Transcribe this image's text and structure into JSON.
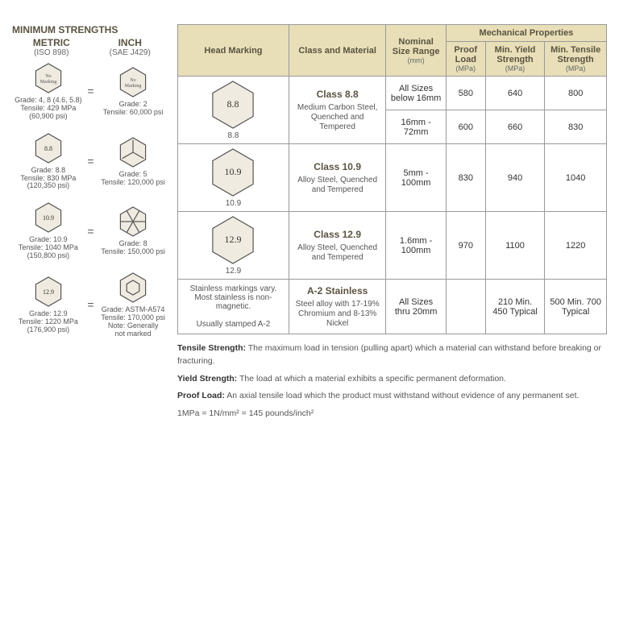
{
  "left": {
    "title": "MINIMUM STRENGTHS",
    "metric_label": "METRIC",
    "metric_sub": "(ISO 898)",
    "inch_label": "INCH",
    "inch_sub": "(SAE J429)",
    "rows": [
      {
        "metric_mark": "No Marking",
        "inch_mark": "No Marking",
        "metric_text": "Grade: 4, 8 (4.6, 5.8)\nTensile: 429 MPa\n(60,900 psi)",
        "inch_text": "Grade: 2\nTensile: 60,000 psi"
      },
      {
        "metric_mark": "8.8",
        "inch_mark": "3tick",
        "metric_text": "Grade: 8.8\nTensile: 830 MPa\n(120,350 psi)",
        "inch_text": "Grade: 5\nTensile: 120,000 psi"
      },
      {
        "metric_mark": "10.9",
        "inch_mark": "6tick",
        "metric_text": "Grade: 10.9\nTensile: 1040 MPa\n(150,800 psi)",
        "inch_text": "Grade: 8\nTensile: 150,000 psi"
      },
      {
        "metric_mark": "12.9",
        "inch_mark": "socket",
        "metric_text": "Grade: 12.9\nTensile: 1220 MPa\n(176,900 psi)",
        "inch_text": "Grade: ASTM-A574\nTensile: 170,000 psi\nNote: Generally\nnot marked"
      }
    ]
  },
  "table": {
    "headers": {
      "head_marking": "Head Marking",
      "class_material": "Class and Material",
      "nominal": "Nominal Size Range",
      "nominal_unit": "(mm)",
      "mech_props": "Mechanical Properties",
      "proof": "Proof Load",
      "proof_unit": "(MPa)",
      "yield": "Min. Yield Strength",
      "yield_unit": "(MPa)",
      "tensile": "Min. Tensile Strength",
      "tensile_unit": "(MPa)"
    },
    "rows": [
      {
        "mark": "8.8",
        "class": "Class 8.8",
        "material": "Medium Carbon Steel, Quenched and Tempered",
        "sizes": [
          "All Sizes below 16mm",
          "16mm - 72mm"
        ],
        "proof": [
          "580",
          "600"
        ],
        "yield": [
          "640",
          "660"
        ],
        "tensile": [
          "800",
          "830"
        ]
      },
      {
        "mark": "10.9",
        "class": "Class 10.9",
        "material": "Alloy Steel, Quenched and Tempered",
        "sizes": [
          "5mm - 100mm"
        ],
        "proof": [
          "830"
        ],
        "yield": [
          "940"
        ],
        "tensile": [
          "1040"
        ]
      },
      {
        "mark": "12.9",
        "class": "Class 12.9",
        "material": "Alloy Steel, Quenched and Tempered",
        "sizes": [
          "1.6mm - 100mm"
        ],
        "proof": [
          "970"
        ],
        "yield": [
          "1100"
        ],
        "tensile": [
          "1220"
        ]
      },
      {
        "mark_text": "Stainless markings vary. Most stainless is non-magnetic.\n\nUsually stamped A-2",
        "class": "A-2 Stainless",
        "material": "Steel alloy with 17-19% Chromium and 8-13% Nickel",
        "sizes": [
          "All Sizes thru 20mm"
        ],
        "proof": [
          ""
        ],
        "yield": [
          "210 Min. 450 Typical"
        ],
        "tensile": [
          "500 Min. 700 Typical"
        ]
      }
    ]
  },
  "defs": {
    "tensile_label": "Tensile Strength:",
    "tensile": "The maximum load in tension (pulling apart) which a material can withstand before breaking or fracturing.",
    "yield_label": "Yield Strength:",
    "yield": "The load at which a material exhibits a specific permanent deformation.",
    "proof_label": "Proof Load:",
    "proof": "An axial tensile load which the product must withstand without evidence of any permanent set.",
    "conversion": "1MPa = 1N/mm² = 145 pounds/inch²"
  },
  "colors": {
    "header_bg": "#e8dfb8",
    "header_text": "#5a5340",
    "border": "#999",
    "hex_fill": "#f0ebe0",
    "hex_stroke": "#555"
  }
}
